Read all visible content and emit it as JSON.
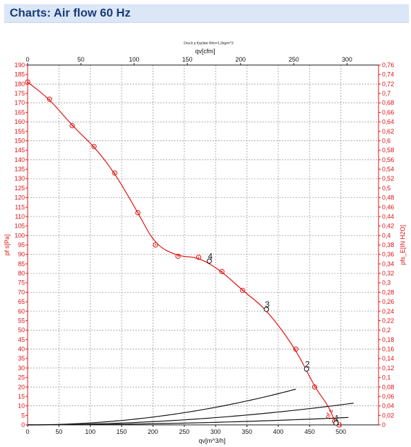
{
  "page": {
    "title": "Charts: Air flow 60 Hz"
  },
  "colors": {
    "header_bg": "#dbe7f7",
    "title": "#1b3b73",
    "fan_curve": "#e01010",
    "system_curves": "#111111",
    "grid": "#8a8a8a",
    "axis_left_right": "#e01010",
    "axis_top_bottom": "#111111"
  },
  "chart_data": {
    "type": "line",
    "subtitle": "Druck p f(qv)bei Rho=1,2kg/m^3",
    "grid": true,
    "x_bottom": {
      "label": "qv[m^3/h]",
      "range": [
        0,
        560
      ],
      "ticks": [
        0,
        50,
        100,
        150,
        200,
        250,
        300,
        350,
        400,
        450,
        500
      ],
      "tick_labels": [
        "0",
        "50",
        "100",
        "150",
        "200",
        "250",
        "300",
        "350",
        "400",
        "450",
        "500"
      ]
    },
    "x_top": {
      "label": "qv[cfm]",
      "range": [
        0,
        329.6
      ],
      "ticks": [
        0,
        50,
        100,
        150,
        200,
        250,
        300
      ],
      "tick_labels": [
        "0",
        "50",
        "100",
        "150",
        "200",
        "250",
        "300"
      ]
    },
    "y_left": {
      "label": "pf s[Pa]",
      "range": [
        0,
        190
      ],
      "ticks": [
        0,
        5,
        10,
        15,
        20,
        25,
        30,
        35,
        40,
        45,
        50,
        55,
        60,
        65,
        70,
        75,
        80,
        85,
        90,
        95,
        100,
        105,
        110,
        115,
        120,
        125,
        130,
        135,
        140,
        145,
        150,
        155,
        160,
        165,
        170,
        175,
        180,
        185,
        190
      ],
      "tick_labels": [
        "0",
        "5",
        "10",
        "15",
        "20",
        "25",
        "30",
        "35",
        "40",
        "45",
        "50",
        "55",
        "60",
        "65",
        "70",
        "75",
        "80",
        "85",
        "90",
        "95",
        "100",
        "105",
        "110",
        "115",
        "120",
        "125",
        "130",
        "135",
        "140",
        "145",
        "150",
        "155",
        "160",
        "165",
        "170",
        "175",
        "180",
        "185",
        "190"
      ]
    },
    "y_right": {
      "label": "pfs_E[IN H2O]",
      "range": [
        0,
        0.76
      ],
      "ticks": [
        0,
        0.02,
        0.04,
        0.06,
        0.08,
        0.1,
        0.12,
        0.14,
        0.16,
        0.18,
        0.2,
        0.22,
        0.24,
        0.26,
        0.28,
        0.3,
        0.32,
        0.34,
        0.36,
        0.38,
        0.4,
        0.42,
        0.44,
        0.46,
        0.48,
        0.5,
        0.52,
        0.54,
        0.56,
        0.58,
        0.6,
        0.62,
        0.64,
        0.66,
        0.68,
        0.7,
        0.72,
        0.74,
        0.76
      ],
      "tick_labels": [
        "0",
        "0,02",
        "0,04",
        "0,06",
        "0,08",
        "0,1",
        "0,12",
        "0,14",
        "0,16",
        "0,18",
        "0,2",
        "0,22",
        "0,24",
        "0,26",
        "0,28",
        "0,3",
        "0,32",
        "0,34",
        "0,36",
        "0,38",
        "0,4",
        "0,42",
        "0,44",
        "0,46",
        "0,48",
        "0,5",
        "0,52",
        "0,54",
        "0,56",
        "0,58",
        "0,6",
        "0,62",
        "0,64",
        "0,66",
        "0,68",
        "0,7",
        "0,72",
        "0,74",
        "0,76"
      ]
    },
    "fan_curve": {
      "x": [
        0,
        35,
        71,
        106,
        139,
        176,
        204,
        240,
        273,
        310,
        343,
        381,
        428,
        458,
        480,
        490,
        497
      ],
      "y": [
        181,
        172,
        158,
        147,
        133,
        112,
        95,
        89,
        88.5,
        81,
        71,
        61,
        40,
        20,
        10,
        2,
        0
      ],
      "markers": [
        1,
        1,
        1,
        1,
        1,
        1,
        1,
        1,
        1,
        1,
        1,
        1,
        1,
        1,
        0,
        1,
        1
      ],
      "label": "pf s"
    },
    "system_curves": [
      {
        "k": 0.000103,
        "x_max": 428,
        "op_label": "4",
        "op_x": 290,
        "op_y": 86.5
      },
      {
        "k": 4.24e-05,
        "x_max": 520,
        "op_label": "3",
        "op_x": 381,
        "op_y": 61
      },
      {
        "k": 1.49e-05,
        "x_max": 512,
        "op_label": "2",
        "op_x": 445,
        "op_y": 29.5
      },
      {
        "k": 0,
        "x_max": 497,
        "op_label": "1",
        "op_x": 492,
        "op_y": 1
      }
    ]
  }
}
